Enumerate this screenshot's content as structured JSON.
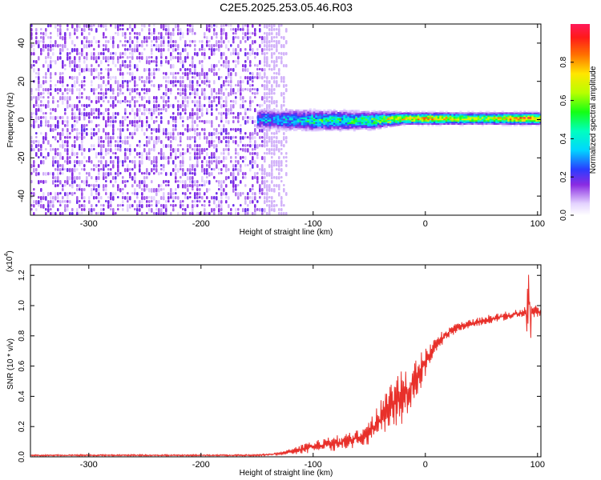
{
  "figure_title": "C2E5.2025.253.05.46.R03",
  "chart_data": [
    {
      "type": "heatmap",
      "title": "C2E5.2025.253.05.46.R03",
      "xlabel": "Height of straight line (km)",
      "ylabel": "Frequency (Hz)",
      "xlim": [
        -352,
        103
      ],
      "ylim": [
        -50,
        50
      ],
      "xticks": [
        -300,
        -200,
        -100,
        0,
        100
      ],
      "yticks": [
        -40,
        -20,
        0,
        20,
        40
      ],
      "colorbar_label": "Normalized spectral amplitude",
      "colorbar_range": [
        0.0,
        1.0
      ],
      "colorbar_ticks": [
        0.0,
        0.2,
        0.4,
        0.6,
        0.8
      ],
      "noise_region_x": [
        -352,
        -145
      ],
      "signal_band": [
        {
          "x": -145,
          "center_hz": 0.5,
          "half_width_hz": 3.5,
          "amplitude": 0.3
        },
        {
          "x": -100,
          "center_hz": 0.0,
          "half_width_hz": 3.5,
          "amplitude": 0.4
        },
        {
          "x": -50,
          "center_hz": 0.0,
          "half_width_hz": 3.0,
          "amplitude": 0.5
        },
        {
          "x": -20,
          "center_hz": 1.0,
          "half_width_hz": 2.0,
          "amplitude": 0.7
        },
        {
          "x": 0,
          "center_hz": 1.0,
          "half_width_hz": 2.0,
          "amplitude": 0.75
        },
        {
          "x": 50,
          "center_hz": 1.0,
          "half_width_hz": 2.0,
          "amplitude": 0.6
        },
        {
          "x": 90,
          "center_hz": 1.0,
          "half_width_hz": 2.0,
          "amplitude": 0.85
        },
        {
          "x": 103,
          "center_hz": 1.0,
          "half_width_hz": 2.0,
          "amplitude": 0.7
        }
      ]
    },
    {
      "type": "line",
      "title": "",
      "xlabel": "Height of straight line (km)",
      "ylabel": "SNR (10 * v/v)",
      "y_scale_label": "(x10",
      "y_scale_exponent": "4",
      "xlim": [
        -352,
        103
      ],
      "ylim": [
        0,
        1.27
      ],
      "xticks": [
        -300,
        -200,
        -100,
        0,
        100
      ],
      "yticks": [
        0.0,
        0.2,
        0.4,
        0.6,
        0.8,
        1.0,
        1.2
      ],
      "ytick_labels": [
        "0.0",
        "0.2",
        "0.4",
        "0.6",
        "0.8",
        "1.0",
        "1.2"
      ],
      "series": [
        {
          "name": "SNR",
          "color": "#e8302a",
          "x": [
            -352,
            -250,
            -150,
            -130,
            -110,
            -100,
            -80,
            -60,
            -50,
            -40,
            -30,
            -20,
            -10,
            0,
            10,
            20,
            30,
            50,
            70,
            85,
            90,
            93,
            95,
            103
          ],
          "mean": [
            0.01,
            0.01,
            0.01,
            0.02,
            0.05,
            0.07,
            0.09,
            0.12,
            0.16,
            0.25,
            0.35,
            0.4,
            0.5,
            0.62,
            0.75,
            0.82,
            0.86,
            0.9,
            0.93,
            0.95,
            0.96,
            0.9,
            0.97,
            0.95
          ],
          "spread": [
            0.005,
            0.005,
            0.005,
            0.01,
            0.03,
            0.04,
            0.05,
            0.06,
            0.08,
            0.12,
            0.15,
            0.18,
            0.15,
            0.1,
            0.05,
            0.04,
            0.03,
            0.03,
            0.03,
            0.03,
            0.04,
            0.25,
            0.05,
            0.03
          ]
        }
      ]
    }
  ]
}
